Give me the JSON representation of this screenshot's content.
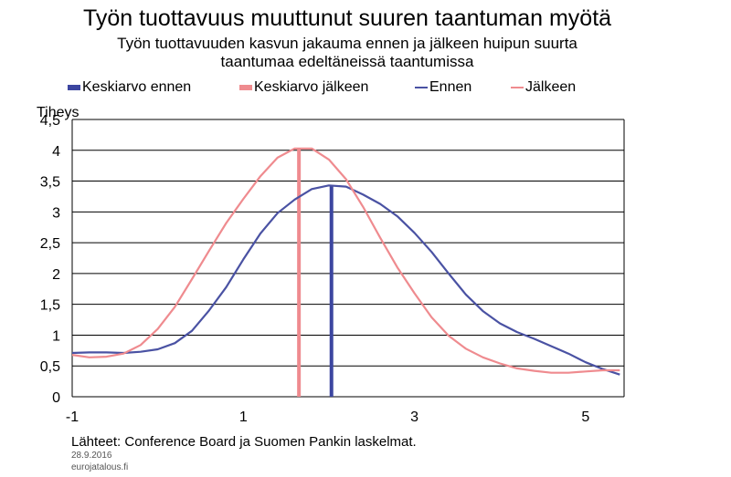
{
  "title": "Työn tuottavuus muuttunut suuren taantuman myötä",
  "subtitle": [
    "Työn tuottavuuden kasvun jakauma ennen ja jälkeen huipun suurta",
    "taantumaa edeltäneissä taantumissa"
  ],
  "source": "Lähteet: Conference Board ja Suomen Pankin laskelmat.",
  "date": "28.9.2016",
  "site": "eurojatalous.fi",
  "colors": {
    "before": "#4a52a3",
    "after": "#ef8b8f",
    "before_mean": "#3c46a0",
    "after_mean": "#ef8b8f"
  },
  "chart_data": {
    "type": "line",
    "title": "Työn tuottavuus muuttunut suuren taantuman myötä",
    "ylabel": "Tiheys",
    "xlabel": "",
    "xlim": [
      -1,
      5.45
    ],
    "ylim": [
      0,
      4.5
    ],
    "x_ticks": [
      -1,
      1,
      3,
      5
    ],
    "y_ticks": [
      0,
      0.5,
      1,
      1.5,
      2,
      2.5,
      3,
      3.5,
      4,
      4.5
    ],
    "y_tick_labels": [
      "0",
      "0,5",
      "1",
      "1,5",
      "2",
      "2,5",
      "3",
      "3,5",
      "4",
      "4,5"
    ],
    "grid": "horizontal",
    "legend_position": "top",
    "legend": [
      "Keskiarvo ennen",
      "Keskiarvo jälkeen",
      "Ennen",
      "Jälkeen"
    ],
    "series": [
      {
        "name": "Ennen",
        "x": [
          -1,
          -0.8,
          -0.6,
          -0.4,
          -0.2,
          0.0,
          0.2,
          0.4,
          0.6,
          0.8,
          1.0,
          1.2,
          1.4,
          1.6,
          1.8,
          2.0,
          2.2,
          2.4,
          2.6,
          2.8,
          3.0,
          3.2,
          3.4,
          3.6,
          3.8,
          4.0,
          4.2,
          4.4,
          4.6,
          4.8,
          5.0,
          5.2,
          5.4
        ],
        "y": [
          0.71,
          0.72,
          0.72,
          0.71,
          0.73,
          0.77,
          0.87,
          1.07,
          1.4,
          1.78,
          2.23,
          2.65,
          2.98,
          3.2,
          3.37,
          3.43,
          3.41,
          3.28,
          3.13,
          2.93,
          2.66,
          2.35,
          2.0,
          1.66,
          1.39,
          1.19,
          1.05,
          0.94,
          0.82,
          0.7,
          0.56,
          0.45,
          0.36
        ]
      },
      {
        "name": "Jälkeen",
        "x": [
          -1,
          -0.8,
          -0.6,
          -0.4,
          -0.2,
          0.0,
          0.2,
          0.4,
          0.6,
          0.8,
          1.0,
          1.2,
          1.4,
          1.6,
          1.8,
          2.0,
          2.2,
          2.4,
          2.6,
          2.8,
          3.0,
          3.2,
          3.4,
          3.6,
          3.8,
          4.0,
          4.2,
          4.4,
          4.6,
          4.8,
          5.0,
          5.2,
          5.4
        ],
        "y": [
          0.68,
          0.64,
          0.65,
          0.7,
          0.84,
          1.1,
          1.46,
          1.91,
          2.37,
          2.82,
          3.21,
          3.58,
          3.88,
          4.03,
          4.03,
          3.85,
          3.53,
          3.08,
          2.58,
          2.1,
          1.68,
          1.29,
          0.99,
          0.78,
          0.64,
          0.54,
          0.46,
          0.42,
          0.39,
          0.39,
          0.41,
          0.43,
          0.43
        ]
      }
    ],
    "means": [
      {
        "name": "Keskiarvo ennen",
        "x": 2.03,
        "y": 3.42
      },
      {
        "name": "Keskiarvo jälkeen",
        "x": 1.65,
        "y": 4.03
      }
    ]
  }
}
